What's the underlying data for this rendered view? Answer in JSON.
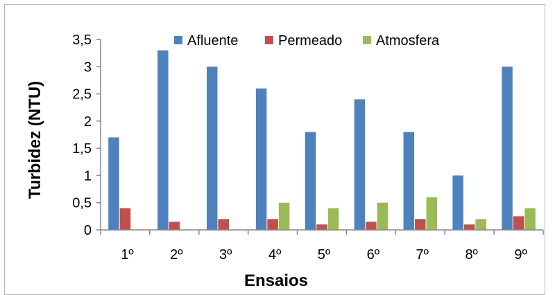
{
  "chart_data": {
    "type": "bar",
    "title": "",
    "xlabel": "Ensaios",
    "ylabel": "Turbidez (NTU)",
    "ylim": [
      0,
      3.5
    ],
    "yticks": [
      "0",
      "0,5",
      "1",
      "1,5",
      "2",
      "2,5",
      "3",
      "3,5"
    ],
    "categories": [
      "1º",
      "2º",
      "3º",
      "4º",
      "5º",
      "6º",
      "7º",
      "8º",
      "9º"
    ],
    "series": [
      {
        "name": "Afluente",
        "color": "#4f81bd",
        "values": [
          1.7,
          3.3,
          3.0,
          2.6,
          1.8,
          2.4,
          1.8,
          1.0,
          3.0
        ]
      },
      {
        "name": "Permeado",
        "color": "#c0504d",
        "values": [
          0.4,
          0.15,
          0.2,
          0.2,
          0.1,
          0.15,
          0.2,
          0.1,
          0.25
        ]
      },
      {
        "name": "Atmosfera",
        "color": "#9bbb59",
        "values": [
          0,
          0,
          0,
          0.5,
          0.4,
          0.5,
          0.6,
          0.2,
          0.4
        ]
      }
    ],
    "grid": false,
    "legend": "top"
  }
}
